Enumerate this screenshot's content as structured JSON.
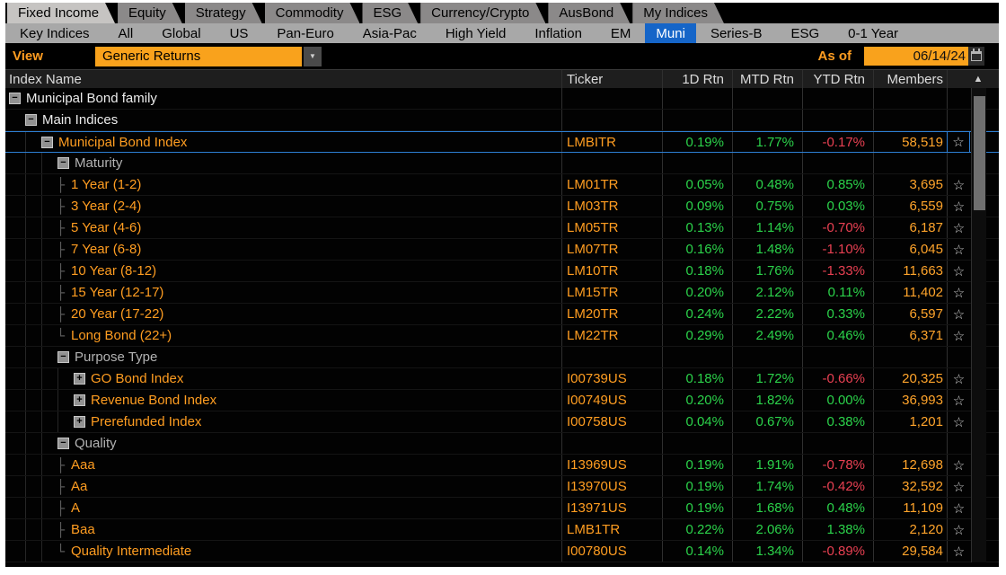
{
  "tabs": [
    {
      "label": "Fixed Income",
      "active": true
    },
    {
      "label": "Equity",
      "active": false
    },
    {
      "label": "Strategy",
      "active": false
    },
    {
      "label": "Commodity",
      "active": false
    },
    {
      "label": "ESG",
      "active": false
    },
    {
      "label": "Currency/Crypto",
      "active": false
    },
    {
      "label": "AusBond",
      "active": false
    },
    {
      "label": "My Indices",
      "active": false
    }
  ],
  "subnav": {
    "items": [
      {
        "label": "Key Indices",
        "selected": false
      },
      {
        "label": "All",
        "selected": false
      },
      {
        "label": "Global",
        "selected": false
      },
      {
        "label": "US",
        "selected": false
      },
      {
        "label": "Pan-Euro",
        "selected": false
      },
      {
        "label": "Asia-Pac",
        "selected": false
      },
      {
        "label": "High Yield",
        "selected": false
      },
      {
        "label": "Inflation",
        "selected": false
      },
      {
        "label": "EM",
        "selected": false
      },
      {
        "label": "Muni",
        "selected": true
      },
      {
        "label": "Series-B",
        "selected": false
      },
      {
        "label": "ESG",
        "selected": false
      },
      {
        "label": "0-1 Year",
        "selected": false
      }
    ]
  },
  "toolbar": {
    "view_label": "View",
    "view_value": "Generic Returns",
    "as_of_label": "As of",
    "as_of_date": "06/14/24"
  },
  "icons": {
    "collapse": "−",
    "expand": "+",
    "branch": "├",
    "branch_end": "└",
    "star": "☆",
    "scroll_up": "▲",
    "dropdown": "▼"
  },
  "colors": {
    "accent_orange": "#f9a21c",
    "text_orange": "#ff9d21",
    "positive_green": "#2bd24a",
    "negative_red": "#e84052",
    "selected_blue": "#2d7fd4",
    "muni_blue": "#1565c8"
  },
  "table": {
    "columns": [
      "Index Name",
      "Ticker",
      "1D Rtn",
      "MTD Rtn",
      "YTD Rtn",
      "Members"
    ],
    "rows": [
      {
        "name": "Municipal Bond family",
        "level": 0,
        "icon": "collapse",
        "style": "white",
        "ticker": "",
        "d1": "",
        "mtd": "",
        "ytd": "",
        "members": "",
        "star": false,
        "selected": false
      },
      {
        "name": "Main Indices",
        "level": 1,
        "icon": "collapse",
        "style": "white",
        "ticker": "",
        "d1": "",
        "mtd": "",
        "ytd": "",
        "members": "",
        "star": false,
        "selected": false
      },
      {
        "name": "Municipal Bond Index",
        "level": 2,
        "icon": "collapse",
        "style": "orange",
        "ticker": "LMBITR",
        "d1": "0.19%",
        "mtd": "1.77%",
        "ytd": "-0.17%",
        "members": "58,519",
        "star": true,
        "selected": true
      },
      {
        "name": "Maturity",
        "level": 3,
        "icon": "collapse",
        "style": "gray",
        "ticker": "",
        "d1": "",
        "mtd": "",
        "ytd": "",
        "members": "",
        "star": false,
        "selected": false
      },
      {
        "name": "1 Year (1-2)",
        "level": 4,
        "icon": "branch",
        "style": "orange",
        "ticker": "LM01TR",
        "d1": "0.05%",
        "mtd": "0.48%",
        "ytd": "0.85%",
        "members": "3,695",
        "star": true,
        "selected": false
      },
      {
        "name": "3 Year (2-4)",
        "level": 4,
        "icon": "branch",
        "style": "orange",
        "ticker": "LM03TR",
        "d1": "0.09%",
        "mtd": "0.75%",
        "ytd": "0.03%",
        "members": "6,559",
        "star": true,
        "selected": false
      },
      {
        "name": "5 Year (4-6)",
        "level": 4,
        "icon": "branch",
        "style": "orange",
        "ticker": "LM05TR",
        "d1": "0.13%",
        "mtd": "1.14%",
        "ytd": "-0.70%",
        "members": "6,187",
        "star": true,
        "selected": false
      },
      {
        "name": "7 Year (6-8)",
        "level": 4,
        "icon": "branch",
        "style": "orange",
        "ticker": "LM07TR",
        "d1": "0.16%",
        "mtd": "1.48%",
        "ytd": "-1.10%",
        "members": "6,045",
        "star": true,
        "selected": false
      },
      {
        "name": "10 Year (8-12)",
        "level": 4,
        "icon": "branch",
        "style": "orange",
        "ticker": "LM10TR",
        "d1": "0.18%",
        "mtd": "1.76%",
        "ytd": "-1.33%",
        "members": "11,663",
        "star": true,
        "selected": false
      },
      {
        "name": "15 Year (12-17)",
        "level": 4,
        "icon": "branch",
        "style": "orange",
        "ticker": "LM15TR",
        "d1": "0.20%",
        "mtd": "2.12%",
        "ytd": "0.11%",
        "members": "11,402",
        "star": true,
        "selected": false
      },
      {
        "name": "20 Year (17-22)",
        "level": 4,
        "icon": "branch",
        "style": "orange",
        "ticker": "LM20TR",
        "d1": "0.24%",
        "mtd": "2.22%",
        "ytd": "0.33%",
        "members": "6,597",
        "star": true,
        "selected": false
      },
      {
        "name": "Long Bond (22+)",
        "level": 4,
        "icon": "branch_end",
        "style": "orange",
        "ticker": "LM22TR",
        "d1": "0.29%",
        "mtd": "2.49%",
        "ytd": "0.46%",
        "members": "6,371",
        "star": true,
        "selected": false
      },
      {
        "name": "Purpose Type",
        "level": 3,
        "icon": "collapse",
        "style": "gray",
        "ticker": "",
        "d1": "",
        "mtd": "",
        "ytd": "",
        "members": "",
        "star": false,
        "selected": false
      },
      {
        "name": "GO Bond Index",
        "level": 4,
        "icon": "expand",
        "style": "orange",
        "ticker": "I00739US",
        "d1": "0.18%",
        "mtd": "1.72%",
        "ytd": "-0.66%",
        "members": "20,325",
        "star": true,
        "selected": false
      },
      {
        "name": "Revenue Bond Index",
        "level": 4,
        "icon": "expand",
        "style": "orange",
        "ticker": "I00749US",
        "d1": "0.20%",
        "mtd": "1.82%",
        "ytd": "0.00%",
        "members": "36,993",
        "star": true,
        "selected": false
      },
      {
        "name": "Prerefunded Index",
        "level": 4,
        "icon": "expand",
        "style": "orange",
        "ticker": "I00758US",
        "d1": "0.04%",
        "mtd": "0.67%",
        "ytd": "0.38%",
        "members": "1,201",
        "star": true,
        "selected": false
      },
      {
        "name": "Quality",
        "level": 3,
        "icon": "collapse",
        "style": "gray",
        "ticker": "",
        "d1": "",
        "mtd": "",
        "ytd": "",
        "members": "",
        "star": false,
        "selected": false
      },
      {
        "name": "Aaa",
        "level": 4,
        "icon": "branch",
        "style": "orange",
        "ticker": "I13969US",
        "d1": "0.19%",
        "mtd": "1.91%",
        "ytd": "-0.78%",
        "members": "12,698",
        "star": true,
        "selected": false
      },
      {
        "name": "Aa",
        "level": 4,
        "icon": "branch",
        "style": "orange",
        "ticker": "I13970US",
        "d1": "0.19%",
        "mtd": "1.74%",
        "ytd": "-0.42%",
        "members": "32,592",
        "star": true,
        "selected": false
      },
      {
        "name": "A",
        "level": 4,
        "icon": "branch",
        "style": "orange",
        "ticker": "I13971US",
        "d1": "0.19%",
        "mtd": "1.68%",
        "ytd": "0.48%",
        "members": "11,109",
        "star": true,
        "selected": false
      },
      {
        "name": "Baa",
        "level": 4,
        "icon": "branch",
        "style": "orange",
        "ticker": "LMB1TR",
        "d1": "0.22%",
        "mtd": "2.06%",
        "ytd": "1.38%",
        "members": "2,120",
        "star": true,
        "selected": false
      },
      {
        "name": "Quality Intermediate",
        "level": 4,
        "icon": "branch_end",
        "style": "orange",
        "ticker": "I00780US",
        "d1": "0.14%",
        "mtd": "1.34%",
        "ytd": "-0.89%",
        "members": "29,584",
        "star": true,
        "selected": false
      }
    ]
  }
}
